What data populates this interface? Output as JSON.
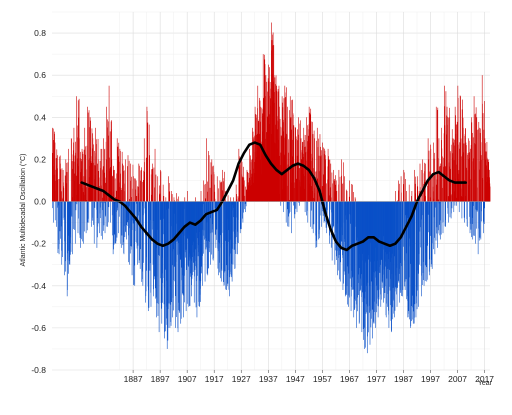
{
  "chart_data": {
    "type": "bar",
    "title": "",
    "xlabel": "Year",
    "ylabel": "Atlantic Multidecadal Oscillation (°C)",
    "xlim": [
      1857,
      2019
    ],
    "ylim": [
      -0.8,
      0.9
    ],
    "x_ticks": [
      "1887",
      "1897",
      "1907",
      "1917",
      "1927",
      "1937",
      "1947",
      "1957",
      "1967",
      "1977",
      "1987",
      "1997",
      "2007",
      "2017"
    ],
    "x_tick_values": [
      1887,
      1897,
      1907,
      1917,
      1927,
      1937,
      1947,
      1957,
      1967,
      1977,
      1987,
      1997,
      2007,
      2017
    ],
    "y_ticks": [
      "-0.8",
      "-0.6",
      "-0.4",
      "-0.2",
      "0.0",
      "0.2",
      "0.4",
      "0.6",
      "0.8"
    ],
    "y_tick_values": [
      -0.8,
      -0.6,
      -0.4,
      -0.2,
      0.0,
      0.2,
      0.4,
      0.6,
      0.8
    ],
    "grid": true,
    "bar_colors": {
      "positive": "#cc0000",
      "negative": "#0a50c8"
    },
    "smooth_color": "#000000",
    "series": [
      {
        "role": "monthly anomaly bars (annual envelope, °C)",
        "x": [
          1856,
          1857,
          1858,
          1859,
          1860,
          1861,
          1862,
          1863,
          1864,
          1865,
          1866,
          1867,
          1868,
          1869,
          1870,
          1871,
          1872,
          1873,
          1874,
          1875,
          1876,
          1877,
          1878,
          1879,
          1880,
          1881,
          1882,
          1883,
          1884,
          1885,
          1886,
          1887,
          1888,
          1889,
          1890,
          1891,
          1892,
          1893,
          1894,
          1895,
          1896,
          1897,
          1898,
          1899,
          1900,
          1901,
          1902,
          1903,
          1904,
          1905,
          1906,
          1907,
          1908,
          1909,
          1910,
          1911,
          1912,
          1913,
          1914,
          1915,
          1916,
          1917,
          1918,
          1919,
          1920,
          1921,
          1922,
          1923,
          1924,
          1925,
          1926,
          1927,
          1928,
          1929,
          1930,
          1931,
          1932,
          1933,
          1934,
          1935,
          1936,
          1937,
          1938,
          1939,
          1940,
          1941,
          1942,
          1943,
          1944,
          1945,
          1946,
          1947,
          1948,
          1949,
          1950,
          1951,
          1952,
          1953,
          1954,
          1955,
          1956,
          1957,
          1958,
          1959,
          1960,
          1961,
          1962,
          1963,
          1964,
          1965,
          1966,
          1967,
          1968,
          1969,
          1970,
          1971,
          1972,
          1973,
          1974,
          1975,
          1976,
          1977,
          1978,
          1979,
          1980,
          1981,
          1982,
          1983,
          1984,
          1985,
          1986,
          1987,
          1988,
          1989,
          1990,
          1991,
          1992,
          1993,
          1994,
          1995,
          1996,
          1997,
          1998,
          1999,
          2000,
          2001,
          2002,
          2003,
          2004,
          2005,
          2006,
          2007,
          2008,
          2009,
          2010,
          2011,
          2012,
          2013,
          2014,
          2015,
          2016,
          2017,
          2018
        ],
        "max": [
          0.6,
          0.35,
          0.28,
          0.22,
          0.18,
          0.15,
          0.2,
          0.25,
          0.3,
          0.35,
          0.5,
          0.3,
          0.25,
          0.35,
          0.45,
          0.4,
          0.3,
          0.35,
          0.2,
          0.25,
          0.3,
          0.45,
          0.55,
          0.2,
          0.15,
          0.3,
          0.25,
          0.18,
          0.2,
          0.22,
          0.18,
          0.12,
          0.1,
          0.18,
          0.15,
          0.3,
          0.45,
          0.22,
          0.18,
          0.25,
          0.12,
          0.15,
          0.08,
          0.02,
          0.12,
          0.05,
          0.02,
          0.04,
          0.0,
          0.0,
          0.02,
          0.05,
          0.0,
          0.0,
          0.02,
          0.0,
          0.05,
          0.1,
          0.3,
          0.22,
          0.2,
          0.08,
          0.12,
          0.1,
          0.15,
          0.05,
          0.03,
          0.02,
          0.02,
          0.08,
          0.25,
          0.2,
          0.1,
          0.15,
          0.25,
          0.35,
          0.45,
          0.55,
          0.45,
          0.7,
          0.6,
          0.65,
          0.85,
          0.6,
          0.55,
          0.45,
          0.5,
          0.55,
          0.45,
          0.5,
          0.42,
          0.35,
          0.4,
          0.3,
          0.35,
          0.4,
          0.45,
          0.38,
          0.3,
          0.35,
          0.32,
          0.28,
          0.22,
          0.25,
          0.18,
          0.15,
          0.1,
          0.15,
          0.2,
          0.12,
          0.05,
          0.1,
          0.08,
          0.02,
          0.0,
          0.0,
          0.0,
          0.0,
          0.0,
          0.0,
          0.0,
          0.0,
          0.0,
          0.0,
          0.0,
          0.0,
          0.0,
          0.0,
          0.05,
          0.1,
          0.12,
          0.15,
          0.05,
          0.08,
          0.05,
          0.15,
          0.12,
          0.18,
          0.2,
          0.18,
          0.3,
          0.25,
          0.28,
          0.45,
          0.3,
          0.35,
          0.55,
          0.45,
          0.4,
          0.3,
          0.45,
          0.55,
          0.5,
          0.35,
          0.28,
          0.3,
          0.4,
          0.5,
          0.4,
          0.35,
          0.6,
          0.3,
          0.2
        ],
        "min": [
          -0.05,
          -0.1,
          -0.12,
          -0.25,
          -0.3,
          -0.35,
          -0.45,
          -0.3,
          -0.25,
          -0.2,
          -0.15,
          -0.22,
          -0.2,
          -0.15,
          -0.1,
          -0.12,
          -0.2,
          -0.22,
          -0.15,
          -0.18,
          -0.15,
          -0.12,
          -0.1,
          -0.25,
          -0.2,
          -0.15,
          -0.22,
          -0.25,
          -0.18,
          -0.3,
          -0.35,
          -0.4,
          -0.3,
          -0.32,
          -0.4,
          -0.48,
          -0.52,
          -0.5,
          -0.45,
          -0.55,
          -0.62,
          -0.58,
          -0.65,
          -0.7,
          -0.6,
          -0.55,
          -0.6,
          -0.62,
          -0.58,
          -0.55,
          -0.52,
          -0.5,
          -0.45,
          -0.48,
          -0.55,
          -0.5,
          -0.4,
          -0.38,
          -0.35,
          -0.3,
          -0.28,
          -0.22,
          -0.35,
          -0.38,
          -0.4,
          -0.42,
          -0.45,
          -0.38,
          -0.32,
          -0.25,
          -0.15,
          -0.1,
          -0.05,
          0.0,
          0.0,
          0.0,
          0.0,
          0.0,
          0.0,
          0.0,
          0.0,
          0.0,
          0.0,
          0.0,
          0.0,
          -0.02,
          -0.05,
          -0.1,
          -0.12,
          -0.15,
          -0.08,
          -0.05,
          -0.02,
          0.0,
          -0.05,
          -0.1,
          -0.12,
          -0.15,
          -0.22,
          -0.18,
          -0.12,
          -0.1,
          -0.15,
          -0.2,
          -0.28,
          -0.3,
          -0.35,
          -0.38,
          -0.42,
          -0.45,
          -0.5,
          -0.52,
          -0.55,
          -0.6,
          -0.58,
          -0.62,
          -0.7,
          -0.72,
          -0.68,
          -0.65,
          -0.6,
          -0.55,
          -0.5,
          -0.48,
          -0.55,
          -0.6,
          -0.62,
          -0.55,
          -0.5,
          -0.48,
          -0.45,
          -0.42,
          -0.55,
          -0.6,
          -0.58,
          -0.55,
          -0.5,
          -0.45,
          -0.4,
          -0.38,
          -0.35,
          -0.32,
          -0.25,
          -0.22,
          -0.18,
          -0.15,
          -0.12,
          -0.1,
          -0.08,
          -0.05,
          -0.02,
          -0.05,
          -0.08,
          -0.1,
          -0.12,
          -0.15,
          -0.18,
          -0.2,
          -0.25,
          -0.18,
          -0.15
        ]
      },
      {
        "role": "smoothed running mean",
        "x": [
          1868,
          1870,
          1872,
          1874,
          1876,
          1878,
          1880,
          1882,
          1884,
          1886,
          1888,
          1890,
          1892,
          1894,
          1896,
          1898,
          1900,
          1902,
          1904,
          1906,
          1908,
          1910,
          1912,
          1914,
          1916,
          1918,
          1920,
          1922,
          1924,
          1926,
          1928,
          1930,
          1932,
          1934,
          1936,
          1938,
          1940,
          1942,
          1944,
          1946,
          1948,
          1950,
          1952,
          1954,
          1956,
          1958,
          1960,
          1962,
          1964,
          1966,
          1968,
          1970,
          1972,
          1974,
          1976,
          1978,
          1980,
          1982,
          1984,
          1986,
          1988,
          1990,
          1992,
          1994,
          1996,
          1998,
          2000,
          2002,
          2004,
          2006,
          2008,
          2010
        ],
        "values": [
          0.09,
          0.08,
          0.07,
          0.06,
          0.05,
          0.03,
          0.01,
          0.0,
          -0.02,
          -0.05,
          -0.08,
          -0.12,
          -0.15,
          -0.18,
          -0.2,
          -0.21,
          -0.2,
          -0.18,
          -0.15,
          -0.12,
          -0.1,
          -0.11,
          -0.09,
          -0.06,
          -0.05,
          -0.04,
          0.0,
          0.05,
          0.1,
          0.18,
          0.23,
          0.27,
          0.28,
          0.27,
          0.22,
          0.18,
          0.15,
          0.13,
          0.15,
          0.17,
          0.18,
          0.17,
          0.15,
          0.11,
          0.05,
          -0.05,
          -0.13,
          -0.19,
          -0.22,
          -0.23,
          -0.21,
          -0.2,
          -0.19,
          -0.17,
          -0.17,
          -0.19,
          -0.2,
          -0.21,
          -0.2,
          -0.17,
          -0.12,
          -0.07,
          0.0,
          0.05,
          0.1,
          0.13,
          0.14,
          0.12,
          0.1,
          0.09,
          0.09,
          0.09
        ]
      }
    ]
  }
}
